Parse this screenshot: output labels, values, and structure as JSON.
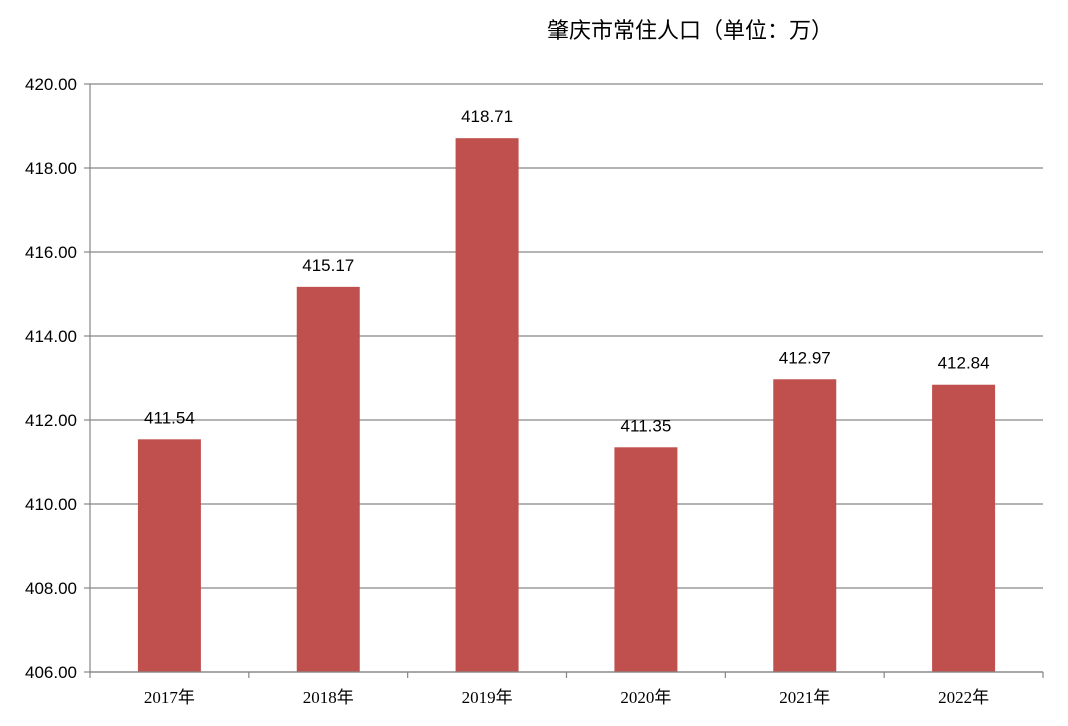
{
  "chart_data": {
    "type": "bar",
    "title": "肇庆市常住人口（单位：万）",
    "xlabel": "",
    "ylabel": "",
    "categories": [
      "2017年",
      "2018年",
      "2019年",
      "2020年",
      "2021年",
      "2022年"
    ],
    "values": [
      411.54,
      415.17,
      418.71,
      411.35,
      412.97,
      412.84
    ],
    "data_labels": [
      "411.54",
      "415.17",
      "418.71",
      "411.35",
      "412.97",
      "412.84"
    ],
    "ylim": [
      406,
      420
    ],
    "yticks": [
      406,
      408,
      410,
      412,
      414,
      416,
      418,
      420
    ],
    "ytick_labels": [
      "406.00",
      "408.00",
      "410.00",
      "412.00",
      "414.00",
      "416.00",
      "418.00",
      "420.00"
    ],
    "grid": true,
    "legend": "none",
    "bar_color": "#C0504D",
    "grid_color": "#868686"
  }
}
